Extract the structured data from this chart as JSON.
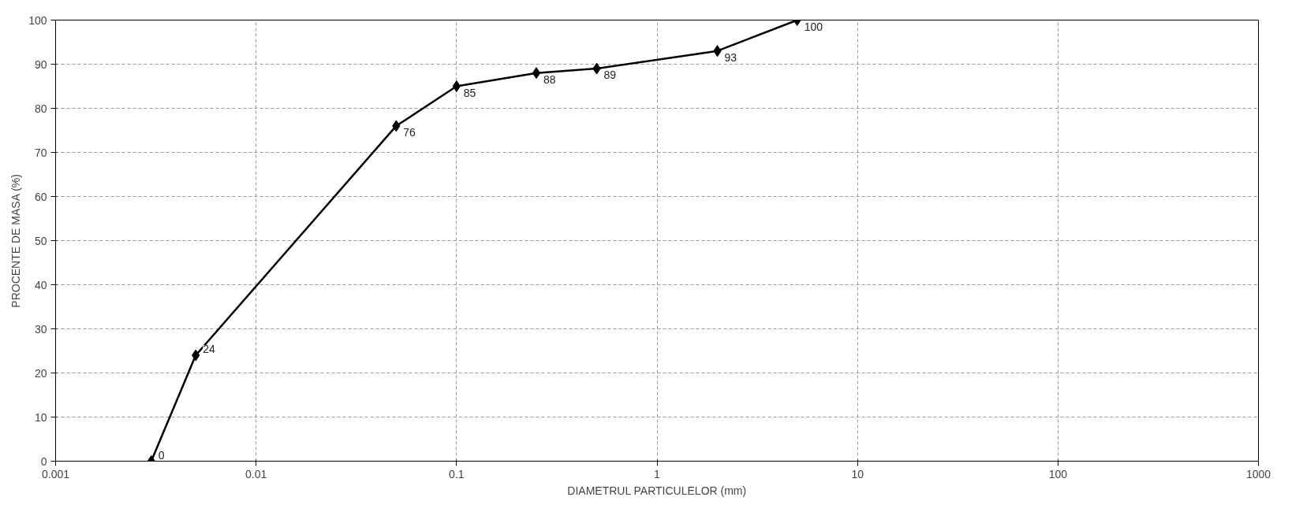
{
  "chart_data": {
    "type": "line",
    "xlabel": "DIAMETRUL PARTICULELOR (mm)",
    "ylabel": "PROCENTE DE MASA (%)",
    "x": [
      0.003,
      0.005,
      0.05,
      0.1,
      0.25,
      0.5,
      2,
      5
    ],
    "series": [
      {
        "color": "#000000",
        "values": [
          0,
          24,
          76,
          85,
          88,
          89,
          93,
          100
        ]
      }
    ],
    "log": "x",
    "xlim": [
      0.001,
      1000
    ],
    "xticks": [
      0.001,
      0.01,
      0.1,
      1,
      10,
      100,
      1000
    ],
    "ylim": [
      0,
      100
    ],
    "yticks": [
      0,
      10,
      20,
      30,
      40,
      50,
      60,
      70,
      80,
      90,
      100
    ],
    "grid": true,
    "marker": "diamond",
    "line_style": "solid",
    "data_labels": true
  }
}
